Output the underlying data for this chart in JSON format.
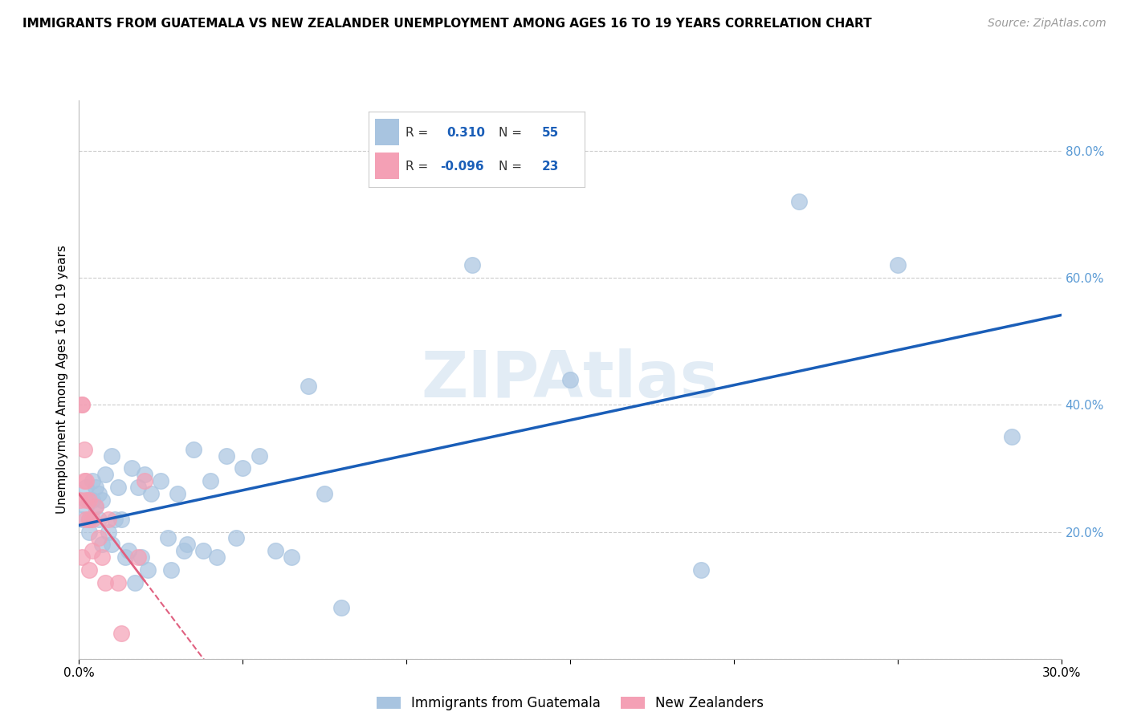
{
  "title": "IMMIGRANTS FROM GUATEMALA VS NEW ZEALANDER UNEMPLOYMENT AMONG AGES 16 TO 19 YEARS CORRELATION CHART",
  "source": "Source: ZipAtlas.com",
  "ylabel": "Unemployment Among Ages 16 to 19 years",
  "xlim": [
    0.0,
    0.3
  ],
  "ylim": [
    0.0,
    0.88
  ],
  "xticks": [
    0.0,
    0.05,
    0.1,
    0.15,
    0.2,
    0.25,
    0.3
  ],
  "xticklabels": [
    "0.0%",
    "",
    "",
    "",
    "",
    "",
    "30.0%"
  ],
  "yticks": [
    0.2,
    0.4,
    0.6,
    0.8
  ],
  "yticklabels": [
    "20.0%",
    "40.0%",
    "60.0%",
    "80.0%"
  ],
  "blue_color": "#a8c4e0",
  "pink_color": "#f4a0b5",
  "blue_line_color": "#1a5eb8",
  "pink_line_color": "#e06080",
  "blue_x": [
    0.001,
    0.002,
    0.002,
    0.003,
    0.003,
    0.003,
    0.004,
    0.004,
    0.005,
    0.005,
    0.006,
    0.006,
    0.007,
    0.007,
    0.008,
    0.009,
    0.01,
    0.01,
    0.011,
    0.012,
    0.013,
    0.014,
    0.015,
    0.016,
    0.017,
    0.018,
    0.019,
    0.02,
    0.021,
    0.022,
    0.025,
    0.027,
    0.028,
    0.03,
    0.032,
    0.033,
    0.035,
    0.038,
    0.04,
    0.042,
    0.045,
    0.048,
    0.05,
    0.055,
    0.06,
    0.065,
    0.07,
    0.075,
    0.08,
    0.12,
    0.15,
    0.19,
    0.22,
    0.25,
    0.285
  ],
  "blue_y": [
    0.22,
    0.24,
    0.27,
    0.25,
    0.22,
    0.2,
    0.28,
    0.25,
    0.24,
    0.27,
    0.26,
    0.22,
    0.25,
    0.18,
    0.29,
    0.2,
    0.32,
    0.18,
    0.22,
    0.27,
    0.22,
    0.16,
    0.17,
    0.3,
    0.12,
    0.27,
    0.16,
    0.29,
    0.14,
    0.26,
    0.28,
    0.19,
    0.14,
    0.26,
    0.17,
    0.18,
    0.33,
    0.17,
    0.28,
    0.16,
    0.32,
    0.19,
    0.3,
    0.32,
    0.17,
    0.16,
    0.43,
    0.26,
    0.08,
    0.62,
    0.44,
    0.14,
    0.72,
    0.62,
    0.35
  ],
  "pink_x": [
    0.0005,
    0.001,
    0.001,
    0.001,
    0.0015,
    0.0015,
    0.002,
    0.002,
    0.002,
    0.003,
    0.003,
    0.003,
    0.004,
    0.004,
    0.005,
    0.006,
    0.007,
    0.008,
    0.009,
    0.012,
    0.013,
    0.018,
    0.02
  ],
  "pink_y": [
    0.25,
    0.4,
    0.4,
    0.16,
    0.33,
    0.28,
    0.25,
    0.28,
    0.22,
    0.25,
    0.22,
    0.14,
    0.22,
    0.17,
    0.24,
    0.19,
    0.16,
    0.12,
    0.22,
    0.12,
    0.04,
    0.16,
    0.28
  ],
  "grid_color": "#cccccc",
  "bg_color": "#ffffff",
  "tick_color": "#5b9bd5",
  "title_fontsize": 11,
  "axis_fontsize": 11
}
